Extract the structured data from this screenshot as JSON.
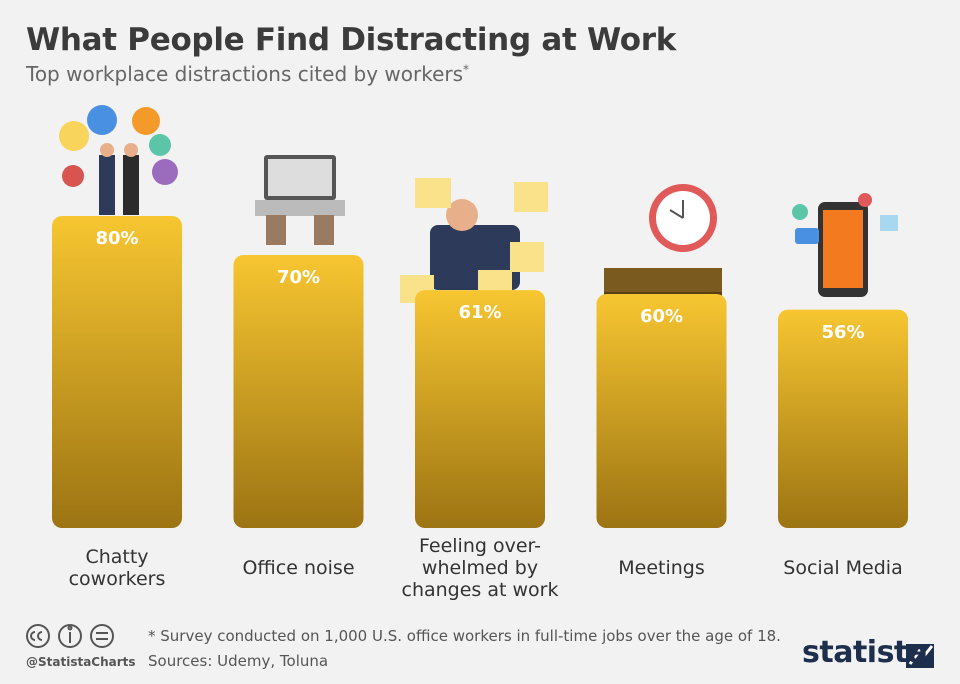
{
  "chart_data": {
    "type": "bar",
    "title": "What People Find Distracting at Work",
    "subtitle": "Top workplace distractions cited by workers",
    "subtitle_marker": "*",
    "categories": [
      "Chatty coworkers",
      "Office noise",
      "Feeling over-whelmed by changes at work",
      "Meetings",
      "Social Media"
    ],
    "values": [
      80,
      70,
      61,
      60,
      56
    ],
    "value_labels": [
      "80%",
      "70%",
      "61%",
      "60%",
      "56%"
    ],
    "color": "#e9b52a",
    "note": "* Survey conducted on 1,000 U.S. office workers in full-time jobs over the age of 18.",
    "source": "Sources: Udemy, Toluna",
    "handle": "@StatistaCharts",
    "brand": "statista"
  }
}
